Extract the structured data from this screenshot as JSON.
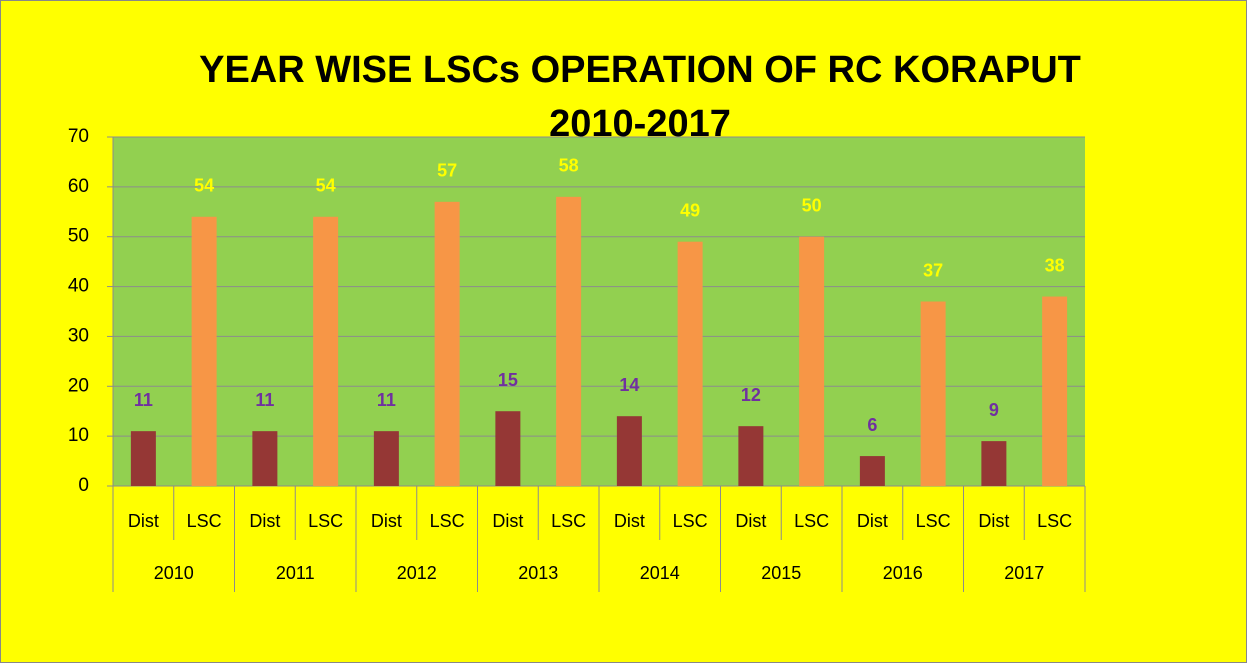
{
  "chart_data": {
    "type": "bar",
    "title": [
      "YEAR WISE LSCs OPERATION OF RC KORAPUT",
      "2010-2017"
    ],
    "groups": [
      "2010",
      "2011",
      "2012",
      "2013",
      "2014",
      "2015",
      "2016",
      "2017"
    ],
    "categories": [
      "Dist",
      "LSC",
      "Dist",
      "LSC",
      "Dist",
      "LSC",
      "Dist",
      "LSC",
      "Dist",
      "LSC",
      "Dist",
      "LSC",
      "Dist",
      "LSC",
      "Dist",
      "LSC"
    ],
    "values": [
      11,
      54,
      11,
      54,
      11,
      57,
      15,
      58,
      14,
      49,
      12,
      50,
      6,
      37,
      9,
      38
    ],
    "colors": [
      "#953735",
      "#f79646"
    ],
    "label_colors": [
      "#7030a0",
      "#ffff00"
    ],
    "ylim": [
      0,
      70
    ],
    "yticks": [
      0,
      10,
      20,
      30,
      40,
      50,
      60,
      70
    ],
    "grid": true
  }
}
